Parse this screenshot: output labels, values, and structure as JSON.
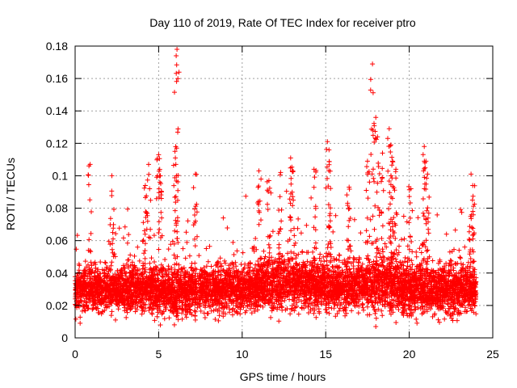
{
  "chart_data": {
    "type": "scatter",
    "title": "Day 110 of 2019, Rate Of TEC Index for receiver ptro",
    "xlabel": "GPS time / hours",
    "ylabel": "ROTI / TECUs",
    "xlim": [
      0,
      25
    ],
    "ylim": [
      0,
      0.18
    ],
    "x_ticks": [
      0,
      5,
      10,
      15,
      20,
      25
    ],
    "x_tick_labels": [
      "0",
      "5",
      "10",
      "15",
      "20",
      "25"
    ],
    "y_ticks": [
      0,
      0.02,
      0.04,
      0.06,
      0.08,
      0.1,
      0.12,
      0.14,
      0.16,
      0.18
    ],
    "y_tick_labels": [
      "0",
      "0.02",
      "0.04",
      "0.06",
      "0.08",
      "0.1",
      "0.12",
      "0.14",
      "0.16",
      "0.18"
    ],
    "grid": true,
    "marker": "+",
    "series_color": "#ff0000",
    "data_x_range": [
      0,
      24
    ],
    "baseline_profile": [
      {
        "x": 0,
        "median": 0.029,
        "spread": 0.012
      },
      {
        "x": 2,
        "median": 0.03,
        "spread": 0.012
      },
      {
        "x": 4,
        "median": 0.03,
        "spread": 0.013
      },
      {
        "x": 6,
        "median": 0.029,
        "spread": 0.013
      },
      {
        "x": 8,
        "median": 0.029,
        "spread": 0.012
      },
      {
        "x": 10,
        "median": 0.031,
        "spread": 0.013
      },
      {
        "x": 12,
        "median": 0.034,
        "spread": 0.014
      },
      {
        "x": 14,
        "median": 0.033,
        "spread": 0.014
      },
      {
        "x": 16,
        "median": 0.031,
        "spread": 0.013
      },
      {
        "x": 18,
        "median": 0.033,
        "spread": 0.015
      },
      {
        "x": 20,
        "median": 0.031,
        "spread": 0.014
      },
      {
        "x": 22,
        "median": 0.03,
        "spread": 0.013
      },
      {
        "x": 24,
        "median": 0.03,
        "spread": 0.012
      }
    ],
    "outliers": [
      {
        "x": 0.9,
        "y": 0.107
      },
      {
        "x": 2.2,
        "y": 0.1
      },
      {
        "x": 4.2,
        "y": 0.094
      },
      {
        "x": 4.4,
        "y": 0.107
      },
      {
        "x": 5.0,
        "y": 0.113
      },
      {
        "x": 5.1,
        "y": 0.1
      },
      {
        "x": 6.0,
        "y": 0.111
      },
      {
        "x": 6.05,
        "y": 0.174
      },
      {
        "x": 6.1,
        "y": 0.178
      },
      {
        "x": 7.2,
        "y": 0.101
      },
      {
        "x": 11.0,
        "y": 0.103
      },
      {
        "x": 11.6,
        "y": 0.097
      },
      {
        "x": 12.3,
        "y": 0.102
      },
      {
        "x": 12.9,
        "y": 0.111
      },
      {
        "x": 13.0,
        "y": 0.103
      },
      {
        "x": 14.3,
        "y": 0.104
      },
      {
        "x": 15.1,
        "y": 0.121
      },
      {
        "x": 15.2,
        "y": 0.116
      },
      {
        "x": 16.4,
        "y": 0.093
      },
      {
        "x": 17.5,
        "y": 0.109
      },
      {
        "x": 17.8,
        "y": 0.169
      },
      {
        "x": 18.0,
        "y": 0.136
      },
      {
        "x": 18.1,
        "y": 0.124
      },
      {
        "x": 18.4,
        "y": 0.114
      },
      {
        "x": 18.8,
        "y": 0.129
      },
      {
        "x": 18.9,
        "y": 0.119
      },
      {
        "x": 19.0,
        "y": 0.109
      },
      {
        "x": 19.2,
        "y": 0.104
      },
      {
        "x": 20.1,
        "y": 0.092
      },
      {
        "x": 20.9,
        "y": 0.118
      },
      {
        "x": 21.0,
        "y": 0.109
      },
      {
        "x": 21.1,
        "y": 0.101
      },
      {
        "x": 23.7,
        "y": 0.101
      },
      {
        "x": 23.8,
        "y": 0.094
      },
      {
        "x": 5.1,
        "y": 0.008
      },
      {
        "x": 18.0,
        "y": 0.007
      },
      {
        "x": 0.3,
        "y": 0.009
      },
      {
        "x": 7.2,
        "y": 0.011
      }
    ]
  }
}
